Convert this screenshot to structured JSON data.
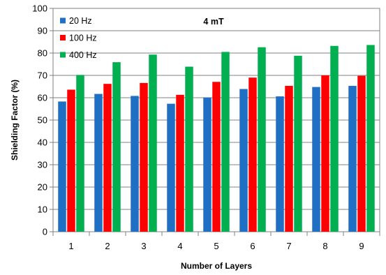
{
  "chart_data": {
    "type": "bar",
    "annotation": "4 mT",
    "xlabel": "Number of Layers",
    "ylabel": "Shielding Factor (%)",
    "ylim": [
      0,
      100
    ],
    "yticks": [
      "0",
      "10",
      "20",
      "30",
      "40",
      "50",
      "60",
      "70",
      "80",
      "90",
      "100"
    ],
    "categories": [
      "1",
      "2",
      "3",
      "4",
      "5",
      "6",
      "7",
      "8",
      "9"
    ],
    "grid": true,
    "legend_position": "top-left",
    "series": [
      {
        "name": "20 Hz",
        "color": "#1f6fc5",
        "values": [
          58.3,
          61.7,
          60.8,
          57.3,
          60.1,
          63.9,
          60.6,
          64.8,
          65.3
        ]
      },
      {
        "name": "100 Hz",
        "color": "#ff0000",
        "values": [
          63.6,
          66.2,
          66.6,
          61.3,
          67.1,
          69.0,
          65.3,
          70.0,
          69.8
        ]
      },
      {
        "name": "400 Hz",
        "color": "#00b050",
        "values": [
          70.2,
          75.9,
          79.3,
          73.9,
          80.5,
          82.6,
          78.8,
          83.2,
          83.6
        ]
      }
    ]
  }
}
